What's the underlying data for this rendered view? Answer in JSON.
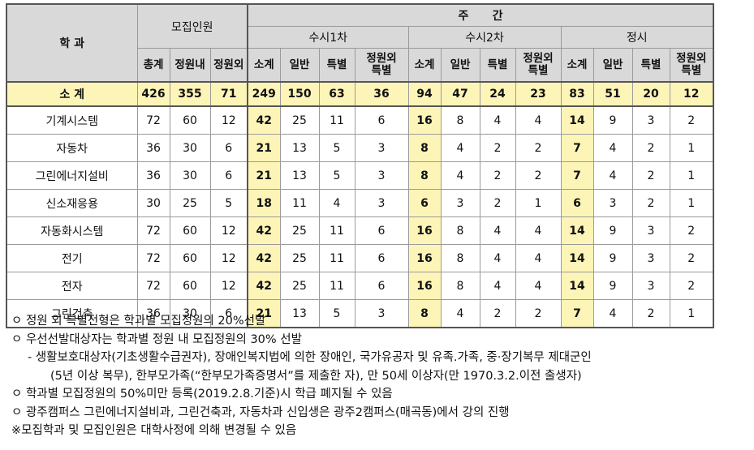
{
  "header": {
    "dept": "학 과",
    "recruit": "모집인원",
    "day": "주      간",
    "susi1": "수시1차",
    "susi2": "수시2차",
    "jeongsi": "정시",
    "recruit_cols": [
      "총계",
      "정원내",
      "정원외"
    ],
    "susi_cols": [
      "소계",
      "일반",
      "특별",
      "정원외\n특별"
    ],
    "jeongsi_cols": [
      "소계",
      "일반",
      "특별",
      "정원외\n특별"
    ]
  },
  "summary": {
    "label": "소 계",
    "values": [
      "426",
      "355",
      "71",
      "249",
      "150",
      "63",
      "36",
      "94",
      "47",
      "24",
      "23",
      "83",
      "51",
      "20",
      "12"
    ]
  },
  "rows": [
    {
      "dept": "기계시스템",
      "values": [
        "72",
        "60",
        "12",
        "42",
        "25",
        "11",
        "6",
        "16",
        "8",
        "4",
        "4",
        "14",
        "9",
        "3",
        "2"
      ]
    },
    {
      "dept": "자동차",
      "values": [
        "36",
        "30",
        "6",
        "21",
        "13",
        "5",
        "3",
        "8",
        "4",
        "2",
        "2",
        "7",
        "4",
        "2",
        "1"
      ]
    },
    {
      "dept": "그린에너지설비",
      "values": [
        "36",
        "30",
        "6",
        "21",
        "13",
        "5",
        "3",
        "8",
        "4",
        "2",
        "2",
        "7",
        "4",
        "2",
        "1"
      ]
    },
    {
      "dept": "신소재응용",
      "values": [
        "30",
        "25",
        "5",
        "18",
        "11",
        "4",
        "3",
        "6",
        "3",
        "2",
        "1",
        "6",
        "3",
        "2",
        "1"
      ]
    },
    {
      "dept": "자동화시스템",
      "values": [
        "72",
        "60",
        "12",
        "42",
        "25",
        "11",
        "6",
        "16",
        "8",
        "4",
        "4",
        "14",
        "9",
        "3",
        "2"
      ]
    },
    {
      "dept": "전기",
      "values": [
        "72",
        "60",
        "12",
        "42",
        "25",
        "11",
        "6",
        "16",
        "8",
        "4",
        "4",
        "14",
        "9",
        "3",
        "2"
      ]
    },
    {
      "dept": "전자",
      "values": [
        "72",
        "60",
        "12",
        "42",
        "25",
        "11",
        "6",
        "16",
        "8",
        "4",
        "4",
        "14",
        "9",
        "3",
        "2"
      ]
    },
    {
      "dept": "그린건축",
      "values": [
        "36",
        "30",
        "6",
        "21",
        "13",
        "5",
        "3",
        "8",
        "4",
        "2",
        "2",
        "7",
        "4",
        "2",
        "1"
      ]
    }
  ],
  "notes": [
    "ㅇ 정원 외 특별전형은 학과별 모집정원의 20%선발",
    "ㅇ 우선선발대상자는 학과별 정원 내 모집정원의 30% 선발",
    "- 생활보호대상자(기초생활수급권자), 장애인복지법에 의한 장애인, 국가유공자 및 유족.가족, 중·장기복무 제대군인",
    "(5년 이상 복무), 한부모가족(“한부모가족증명서”를 제출한 자), 만 50세 이상자(만 1970.3.2.이전 출생자)",
    "ㅇ 학과별 모집정원의 50%미만 등록(2019.2.8.기준)시 학급 폐지될 수 있음",
    "ㅇ 광주캠퍼스 그린에너지설비과, 그린건축과, 자동차과 신입생은 광주2캠퍼스(매곡동)에서 강의 진행",
    "※모집학과 및 모집인원은 대학사정에 의해 변경될 수 있음"
  ]
}
